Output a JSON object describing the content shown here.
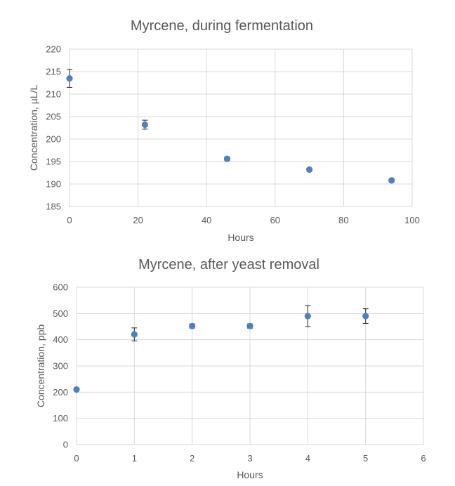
{
  "colors": {
    "marker": "#4f81bd",
    "grid": "#d9d9d9",
    "text": "#595959",
    "errorbar": "#262626"
  },
  "chart_data": [
    {
      "type": "scatter",
      "title": "Myrcene, during fermentation",
      "xlabel": "Hours",
      "ylabel": "Concentration, µL/L",
      "xlim": [
        0,
        100
      ],
      "ylim": [
        185,
        220
      ],
      "xticks": [
        0,
        20,
        40,
        60,
        80,
        100
      ],
      "yticks": [
        185,
        190,
        195,
        200,
        205,
        210,
        215,
        220
      ],
      "xtick_labels": [
        "0",
        "20",
        "40",
        "60",
        "80",
        "100"
      ],
      "ytick_labels": [
        "185",
        "190",
        "195",
        "200",
        "205",
        "210",
        "215",
        "220"
      ],
      "grid": true,
      "legend": "none",
      "points": [
        {
          "x": 0,
          "y": 213.5,
          "err": 2
        },
        {
          "x": 22,
          "y": 203.2,
          "err": 1
        },
        {
          "x": 46,
          "y": 195.6,
          "err": 0.4
        },
        {
          "x": 70,
          "y": 193.2,
          "err": 0.3
        },
        {
          "x": 94,
          "y": 190.8,
          "err": 0.3
        }
      ]
    },
    {
      "type": "scatter",
      "title": "Myrcene, after yeast removal",
      "xlabel": "Hours",
      "ylabel": "Concentration, ppb",
      "xlim": [
        0,
        6
      ],
      "ylim": [
        0,
        600
      ],
      "xticks": [
        0,
        1,
        2,
        3,
        4,
        5,
        6
      ],
      "yticks": [
        0,
        100,
        200,
        300,
        400,
        500,
        600
      ],
      "xtick_labels": [
        "0",
        "1",
        "2",
        "3",
        "4",
        "5",
        "6"
      ],
      "ytick_labels": [
        "0",
        "100",
        "200",
        "300",
        "400",
        "500",
        "600"
      ],
      "grid": true,
      "legend": "none",
      "points": [
        {
          "x": 0,
          "y": 210,
          "err": 5
        },
        {
          "x": 1,
          "y": 420,
          "err": 25
        },
        {
          "x": 2,
          "y": 452,
          "err": 8
        },
        {
          "x": 3,
          "y": 452,
          "err": 8
        },
        {
          "x": 4,
          "y": 490,
          "err": 40
        },
        {
          "x": 5,
          "y": 490,
          "err": 28
        }
      ]
    }
  ]
}
